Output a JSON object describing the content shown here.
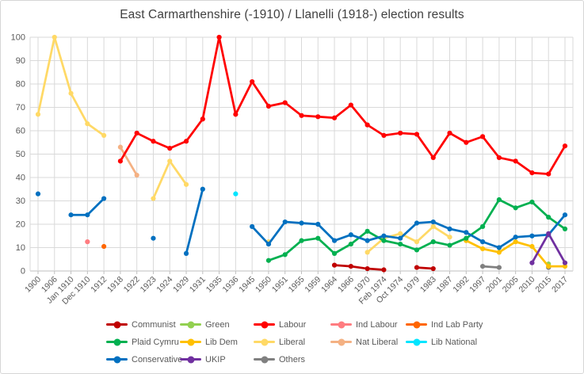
{
  "chart_data": {
    "type": "line",
    "title": "East Carmarthenshire (-1910) / Llanelli (1918-) election results",
    "xlabel": "",
    "ylabel": "",
    "ylim": [
      0,
      100
    ],
    "y_ticks": [
      0,
      10,
      20,
      30,
      40,
      50,
      60,
      70,
      80,
      90,
      100
    ],
    "grid": true,
    "legend_position": "bottom",
    "axis_text_color": "#595959",
    "grid_color": "#d9d9d9",
    "categories": [
      "1900",
      "1906",
      "Jan 1910",
      "Dec 1910",
      "1912",
      "1918",
      "1922",
      "1923",
      "1924",
      "1929",
      "1931",
      "1935",
      "1936",
      "1945",
      "1950",
      "1951",
      "1955",
      "1959",
      "1964",
      "1966",
      "1970",
      "Feb 1974",
      "Oct 1974",
      "1979",
      "1983",
      "1987",
      "1992",
      "1997",
      "2001",
      "2005",
      "2010",
      "2015",
      "2017"
    ],
    "series": [
      {
        "name": "Liberal",
        "color": "#FFD966",
        "values": [
          67,
          100,
          76,
          63,
          58,
          null,
          null,
          31,
          47,
          37,
          null,
          null,
          null,
          null,
          12.5,
          null,
          null,
          null,
          null,
          null,
          8,
          14,
          16,
          12.5,
          19,
          14.5,
          null,
          null,
          null,
          null,
          null,
          null,
          null
        ]
      },
      {
        "name": "Nat Liberal",
        "color": "#F4B183",
        "values": [
          null,
          null,
          null,
          null,
          null,
          53,
          41,
          null,
          null,
          null,
          null,
          null,
          null,
          null,
          null,
          null,
          null,
          null,
          null,
          null,
          null,
          null,
          null,
          null,
          null,
          null,
          null,
          null,
          null,
          null,
          null,
          null,
          null
        ]
      },
      {
        "name": "Ind Labour",
        "color": "#FF7C80",
        "values": [
          null,
          null,
          null,
          12.5,
          null,
          null,
          null,
          null,
          null,
          null,
          null,
          null,
          null,
          null,
          null,
          null,
          null,
          null,
          null,
          null,
          null,
          null,
          null,
          null,
          null,
          null,
          null,
          null,
          null,
          null,
          null,
          null,
          null
        ]
      },
      {
        "name": "Ind Lab Party",
        "color": "#FF6600",
        "values": [
          null,
          null,
          null,
          null,
          10.5,
          null,
          null,
          null,
          null,
          null,
          null,
          null,
          null,
          null,
          null,
          null,
          null,
          null,
          null,
          null,
          null,
          null,
          null,
          null,
          null,
          null,
          null,
          null,
          null,
          null,
          null,
          null,
          null
        ]
      },
      {
        "name": "Lib National",
        "color": "#00E5FF",
        "values": [
          null,
          null,
          null,
          null,
          null,
          null,
          null,
          null,
          null,
          null,
          null,
          null,
          33,
          null,
          null,
          null,
          null,
          null,
          null,
          null,
          null,
          null,
          null,
          null,
          null,
          null,
          null,
          null,
          null,
          null,
          null,
          null,
          null
        ]
      },
      {
        "name": "Green",
        "color": "#92D050",
        "values": [
          null,
          null,
          null,
          null,
          null,
          null,
          null,
          null,
          null,
          null,
          null,
          null,
          null,
          null,
          null,
          null,
          null,
          null,
          null,
          null,
          null,
          null,
          null,
          null,
          null,
          null,
          null,
          null,
          null,
          null,
          null,
          3,
          null
        ]
      },
      {
        "name": "Others",
        "color": "#808080",
        "values": [
          null,
          null,
          null,
          null,
          null,
          null,
          null,
          null,
          null,
          null,
          null,
          null,
          null,
          null,
          null,
          null,
          null,
          null,
          null,
          null,
          null,
          null,
          null,
          null,
          null,
          null,
          null,
          2,
          1.5,
          null,
          null,
          1.5,
          null
        ]
      },
      {
        "name": "Lib Dem",
        "color": "#FFC000",
        "values": [
          null,
          null,
          null,
          null,
          null,
          null,
          null,
          null,
          null,
          null,
          null,
          null,
          null,
          null,
          null,
          null,
          null,
          null,
          null,
          null,
          null,
          null,
          null,
          null,
          null,
          null,
          13,
          9.5,
          8,
          12.5,
          10.5,
          2,
          2
        ]
      },
      {
        "name": "Plaid Cymru",
        "color": "#00B050",
        "values": [
          null,
          null,
          null,
          null,
          null,
          null,
          null,
          null,
          null,
          null,
          null,
          null,
          null,
          null,
          4.5,
          7,
          13,
          14,
          7.5,
          11.5,
          17,
          13,
          11.5,
          9,
          12.5,
          11,
          14,
          19,
          30.5,
          27,
          29.5,
          23,
          18
        ]
      },
      {
        "name": "Conservative",
        "color": "#0070C0",
        "values": [
          33,
          null,
          24,
          24,
          31,
          null,
          null,
          14,
          null,
          7.5,
          35,
          null,
          null,
          19,
          11.5,
          21,
          20.5,
          20,
          13,
          15.5,
          13,
          15,
          14,
          20.5,
          21,
          18,
          16.5,
          12.5,
          10,
          14.5,
          15,
          15.5,
          24
        ]
      },
      {
        "name": "UKIP",
        "color": "#7030A0",
        "values": [
          null,
          null,
          null,
          null,
          null,
          null,
          null,
          null,
          null,
          null,
          null,
          null,
          null,
          null,
          null,
          null,
          null,
          null,
          null,
          null,
          null,
          null,
          null,
          null,
          null,
          null,
          null,
          null,
          null,
          null,
          3.5,
          16,
          3.5
        ]
      },
      {
        "name": "Communist",
        "color": "#C00000",
        "values": [
          null,
          null,
          null,
          null,
          null,
          null,
          null,
          null,
          null,
          null,
          null,
          null,
          null,
          null,
          null,
          null,
          null,
          null,
          2.5,
          2,
          1,
          0.5,
          null,
          1.5,
          1,
          null,
          null,
          null,
          null,
          null,
          null,
          null,
          null
        ]
      },
      {
        "name": "Labour",
        "color": "#FF0000",
        "values": [
          null,
          null,
          null,
          null,
          null,
          47,
          59,
          55.5,
          52.5,
          55.5,
          65,
          100,
          67,
          81,
          70.5,
          72,
          66.5,
          66,
          65.5,
          71,
          62.5,
          58,
          59,
          58.5,
          48.5,
          59,
          55,
          57.5,
          48.5,
          47,
          42,
          41.5,
          53.5
        ]
      }
    ],
    "legend_rows": [
      [
        "Communist",
        "Green",
        "Labour",
        "Ind Labour",
        "Ind Lab Party"
      ],
      [
        "Plaid Cymru",
        "Lib Dem",
        "Liberal",
        "Nat Liberal",
        "Lib National"
      ],
      [
        "Conservative",
        "UKIP",
        "Others"
      ]
    ]
  }
}
